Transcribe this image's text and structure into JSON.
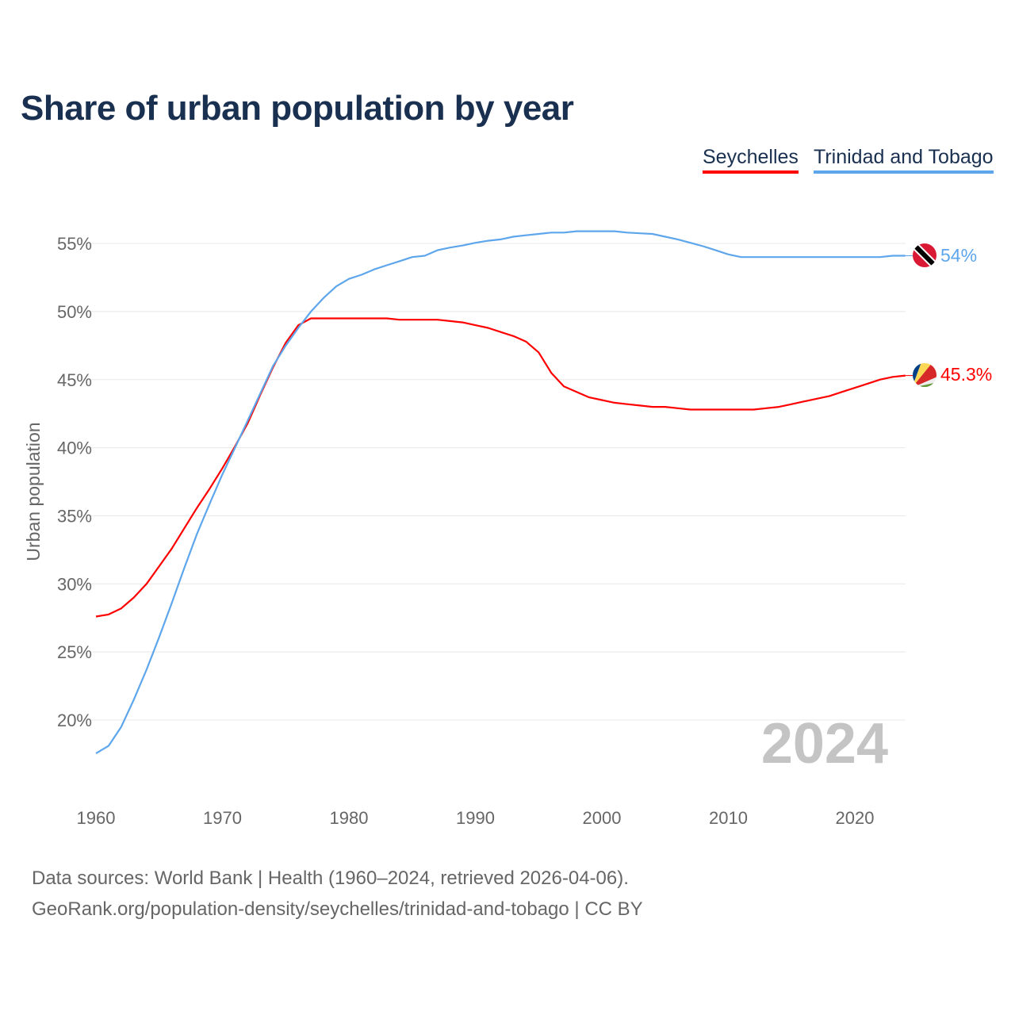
{
  "title": "Share of urban population by year",
  "source_line1": "Data sources: World Bank | Health (1960–2024, retrieved 2026-04-06).",
  "source_line2": "GeoRank.org/population-density/seychelles/trinidad-and-tobago | CC BY",
  "chart_data": {
    "type": "line",
    "title": "Share of urban population by year",
    "xlabel": "",
    "ylabel": "Urban population",
    "year_label": "2024",
    "xlim": [
      1960,
      2024
    ],
    "ylim": [
      15,
      58
    ],
    "xticks": [
      1960,
      1970,
      1980,
      1990,
      2000,
      2010,
      2020
    ],
    "yticks": [
      20,
      25,
      30,
      35,
      40,
      45,
      50,
      55
    ],
    "ytick_labels": [
      "20%",
      "25%",
      "30%",
      "35%",
      "40%",
      "45%",
      "50%",
      "55%"
    ],
    "grid": true,
    "legend_position": "top-right",
    "series": [
      {
        "name": "Seychelles",
        "color": "#ff0000",
        "end_label": "45.3%",
        "values": [
          27.6,
          27.75,
          28.2,
          29,
          30,
          31.3,
          32.6,
          34.1,
          35.6,
          37,
          38.5,
          40.1,
          41.8,
          43.9,
          45.9,
          47.7,
          49,
          49.5,
          49.5,
          49.5,
          49.5,
          49.5,
          49.5,
          49.5,
          49.4,
          49.4,
          49.4,
          49.4,
          49.3,
          49.2,
          49,
          48.8,
          48.5,
          48.2,
          47.8,
          47,
          45.5,
          44.5,
          44.1,
          43.7,
          43.5,
          43.3,
          43.2,
          43.1,
          43,
          43,
          42.9,
          42.8,
          42.8,
          42.8,
          42.8,
          42.8,
          42.8,
          42.9,
          43,
          43.2,
          43.4,
          43.6,
          43.8,
          44.1,
          44.4,
          44.7,
          45,
          45.2,
          45.3
        ]
      },
      {
        "name": "Trinidad and Tobago",
        "color": "#5ea6ec",
        "end_label": "54%",
        "values": [
          17.55,
          18.1,
          19.5,
          21.5,
          23.7,
          26.1,
          28.6,
          31.2,
          33.7,
          35.9,
          38.05,
          40,
          42,
          44,
          46,
          47.5,
          48.8,
          50,
          51,
          51.85,
          52.4,
          52.7,
          53.1,
          53.4,
          53.7,
          54,
          54.1,
          54.5,
          54.7,
          54.85,
          55.05,
          55.2,
          55.3,
          55.5,
          55.6,
          55.7,
          55.8,
          55.8,
          55.9,
          55.9,
          55.9,
          55.9,
          55.8,
          55.75,
          55.7,
          55.5,
          55.3,
          55.05,
          54.8,
          54.5,
          54.2,
          54,
          54,
          54,
          54,
          54,
          54,
          54,
          54,
          54,
          54,
          54,
          54,
          54.1,
          54.1
        ]
      }
    ]
  }
}
